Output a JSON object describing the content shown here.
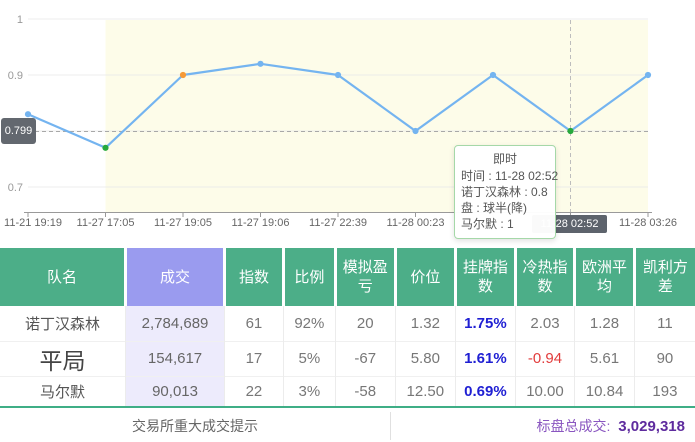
{
  "chart_data": {
    "type": "line",
    "title": "",
    "xlabel": "",
    "ylabel": "",
    "x": [
      "11-21 19:19",
      "11-27 17:05",
      "11-27 19:05",
      "11-27 19:06",
      "11-27 22:39",
      "11-28 00:23",
      "",
      "11-28 02:52",
      "11-28 03:26"
    ],
    "values": [
      0.83,
      0.77,
      0.9,
      0.92,
      0.9,
      0.8,
      0.9,
      0.8,
      0.9
    ],
    "point_colors": [
      "blue",
      "green",
      "orange",
      "blue",
      "blue",
      "blue",
      "blue",
      "green",
      "blue"
    ],
    "y_ticks": [
      {
        "value": 1.0,
        "label": "1"
      },
      {
        "value": 0.9,
        "label": "0.9"
      },
      {
        "value": 0.8,
        "label": ""
      },
      {
        "value": 0.7,
        "label": "0.7"
      }
    ],
    "ylim": [
      0.65,
      1.02
    ],
    "grid": true,
    "reference_line": {
      "value": 0.799,
      "label": "0.799"
    },
    "highlight_index": 7,
    "highlight_time_label": "11-28 02:52",
    "shade_from_index": 1,
    "colors": {
      "line": "#74b4f0",
      "blue": "#74b4f0",
      "green": "#27a93c",
      "orange": "#f59a38",
      "shade": "#fdfce9",
      "grid": "#eaeaea",
      "axis": "#9a9a9a",
      "tick_text": "#666666"
    }
  },
  "tooltip": {
    "title": "即时",
    "lines": [
      "时间 : 11-28 02:52",
      "诺丁汉森林 : 0.8",
      "盘 : 球半(降)",
      "马尔默 : 1"
    ]
  },
  "table": {
    "headers": [
      "队名",
      "成交",
      "指数",
      "比例",
      "模拟盈亏",
      "价位",
      "挂牌指数",
      "冷热指数",
      "欧洲平均",
      "凯利方差"
    ],
    "rows": [
      [
        "诺丁汉森林",
        "2,784,689",
        "61",
        "92%",
        "20",
        "1.32",
        "1.75%",
        "2.03",
        "1.28",
        "11"
      ],
      [
        "平局",
        "154,617",
        "17",
        "5%",
        "-67",
        "5.80",
        "1.61%",
        "-0.94",
        "5.61",
        "90"
      ],
      [
        "马尔默",
        "90,013",
        "22",
        "3%",
        "-58",
        "12.50",
        "0.69%",
        "10.00",
        "10.84",
        "193"
      ]
    ]
  },
  "footer": {
    "left_text": "交易所重大成交提示",
    "total_label": "标盘总成交:",
    "total_value": "3,029,318"
  }
}
